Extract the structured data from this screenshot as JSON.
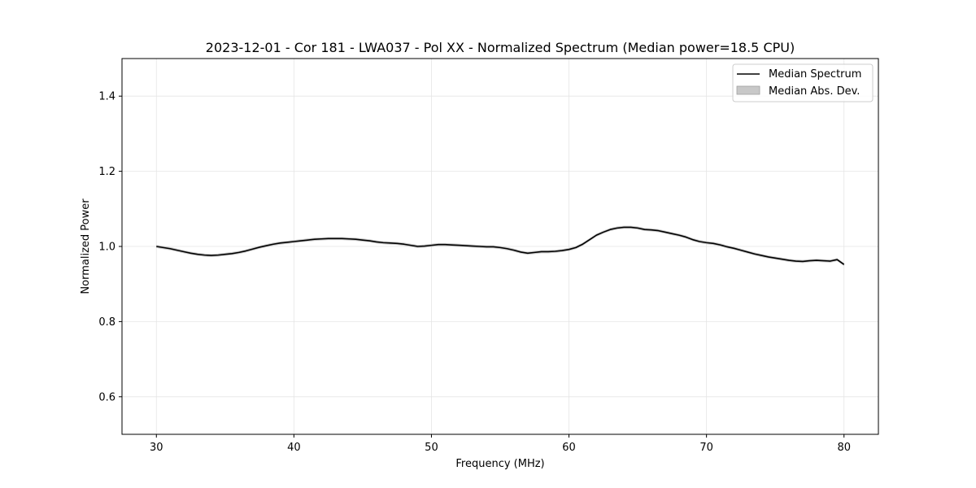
{
  "chart_data": {
    "type": "line",
    "title": "2023-12-01 - Cor 181 - LWA037 - Pol XX - Normalized Spectrum (Median power=18.5 CPU)",
    "xlabel": "Frequency (MHz)",
    "ylabel": "Normalized Power",
    "xlim": [
      27.5,
      82.5
    ],
    "ylim": [
      0.5,
      1.5
    ],
    "xticks": [
      30,
      40,
      50,
      60,
      70,
      80
    ],
    "yticks": [
      0.6,
      0.8,
      1.0,
      1.2,
      1.4
    ],
    "xtick_labels": [
      "30",
      "40",
      "50",
      "60",
      "70",
      "80"
    ],
    "ytick_labels": [
      "0.6",
      "0.8",
      "1.0",
      "1.2",
      "1.4"
    ],
    "grid": true,
    "legend_position": "top-right",
    "legend": [
      "Median Spectrum",
      "Median Abs. Dev."
    ],
    "colors": {
      "line": "#000000",
      "band": "#bfbfbf",
      "grid": "#e5e5e5"
    },
    "series": [
      {
        "name": "Median Spectrum",
        "x": [
          30,
          30.5,
          31,
          31.5,
          32,
          32.5,
          33,
          33.5,
          34,
          34.5,
          35,
          35.5,
          36,
          36.5,
          37,
          37.5,
          38,
          38.5,
          39,
          39.5,
          40,
          40.5,
          41,
          41.5,
          42,
          42.5,
          43,
          43.5,
          44,
          44.5,
          45,
          45.5,
          46,
          46.5,
          47,
          47.5,
          48,
          48.5,
          49,
          49.5,
          50,
          50.5,
          51,
          51.5,
          52,
          52.5,
          53,
          53.5,
          54,
          54.5,
          55,
          55.5,
          56,
          56.5,
          57,
          57.5,
          58,
          58.5,
          59,
          59.5,
          60,
          60.5,
          61,
          61.5,
          62,
          62.5,
          63,
          63.5,
          64,
          64.5,
          65,
          65.5,
          66,
          66.5,
          67,
          67.5,
          68,
          68.5,
          69,
          69.5,
          70,
          70.5,
          71,
          71.5,
          72,
          72.5,
          73,
          73.5,
          74,
          74.5,
          75,
          75.5,
          76,
          76.5,
          77,
          77.5,
          78,
          78.5,
          79,
          79.5,
          80
        ],
        "values": [
          1.0,
          0.997,
          0.994,
          0.99,
          0.986,
          0.982,
          0.979,
          0.977,
          0.976,
          0.977,
          0.979,
          0.981,
          0.984,
          0.988,
          0.993,
          0.998,
          1.002,
          1.006,
          1.009,
          1.011,
          1.013,
          1.015,
          1.017,
          1.019,
          1.02,
          1.021,
          1.021,
          1.021,
          1.02,
          1.019,
          1.017,
          1.015,
          1.012,
          1.01,
          1.009,
          1.008,
          1.006,
          1.003,
          1.0,
          1.001,
          1.003,
          1.005,
          1.005,
          1.004,
          1.003,
          1.002,
          1.001,
          1.0,
          0.999,
          0.999,
          0.997,
          0.994,
          0.99,
          0.985,
          0.982,
          0.984,
          0.986,
          0.986,
          0.987,
          0.989,
          0.992,
          0.997,
          1.006,
          1.018,
          1.03,
          1.038,
          1.045,
          1.049,
          1.051,
          1.051,
          1.049,
          1.045,
          1.044,
          1.042,
          1.038,
          1.034,
          1.03,
          1.025,
          1.018,
          1.013,
          1.01,
          1.008,
          1.004,
          0.999,
          0.995,
          0.99,
          0.985,
          0.98,
          0.976,
          0.972,
          0.969,
          0.966,
          0.963,
          0.961,
          0.96,
          0.962,
          0.963,
          0.962,
          0.961,
          0.965,
          0.952
        ]
      },
      {
        "name": "Median Abs. Dev.",
        "band_halfwidth": 0.004
      }
    ]
  }
}
